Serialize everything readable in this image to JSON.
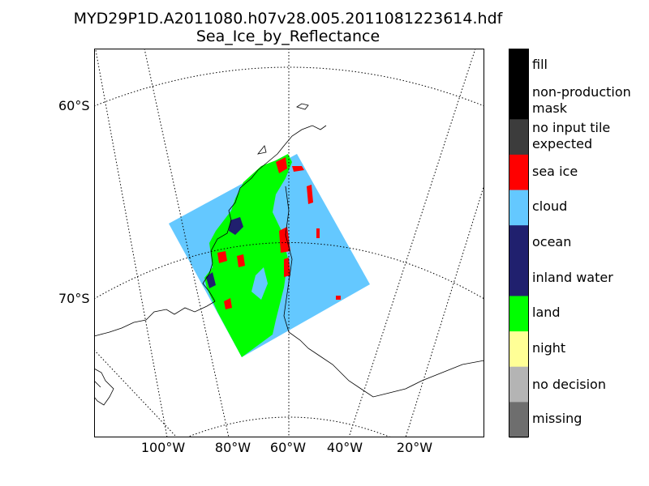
{
  "title": {
    "line1": "MYD29P1D.A2011080.h07v28.005.2011081223614.hdf",
    "line2": "Sea_Ice_by_Reflectance"
  },
  "latitude_labels": [
    "60°S",
    "70°S"
  ],
  "longitude_labels": [
    "100°W",
    "80°W",
    "60°W",
    "40°W",
    "20°W"
  ],
  "legend": [
    {
      "label": "fill",
      "color": "#000000"
    },
    {
      "label": "non-production mask",
      "color": "#000000"
    },
    {
      "label": "no input tile expected",
      "color": "#3c3c3c"
    },
    {
      "label": "sea ice",
      "color": "#ff0000"
    },
    {
      "label": "cloud",
      "color": "#64c8ff"
    },
    {
      "label": "ocean",
      "color": "#20206e"
    },
    {
      "label": "inland water",
      "color": "#20206e"
    },
    {
      "label": "land",
      "color": "#00ff00"
    },
    {
      "label": "night",
      "color": "#ffff96"
    },
    {
      "label": "no decision",
      "color": "#b4b4b4"
    },
    {
      "label": "missing",
      "color": "#6e6e6e"
    }
  ],
  "colors": {
    "coastline": "#000000",
    "graticule": "#000000"
  }
}
